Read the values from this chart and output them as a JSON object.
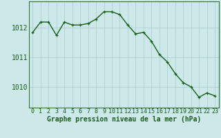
{
  "x": [
    0,
    1,
    2,
    3,
    4,
    5,
    6,
    7,
    8,
    9,
    10,
    11,
    12,
    13,
    14,
    15,
    16,
    17,
    18,
    19,
    20,
    21,
    22,
    23
  ],
  "y": [
    1011.85,
    1012.2,
    1012.2,
    1011.75,
    1012.2,
    1012.1,
    1012.1,
    1012.15,
    1012.3,
    1012.55,
    1012.55,
    1012.45,
    1012.1,
    1011.8,
    1011.85,
    1011.55,
    1011.1,
    1010.85,
    1010.45,
    1010.15,
    1010.0,
    1009.65,
    1009.8,
    1009.7
  ],
  "line_color": "#1a5c1a",
  "marker": "+",
  "marker_size": 3,
  "background_color": "#cce8e8",
  "grid_color": "#aacccc",
  "xlabel": "Graphe pression niveau de la mer (hPa)",
  "yticks": [
    1010,
    1011,
    1012
  ],
  "ylim": [
    1009.3,
    1012.9
  ],
  "xlim": [
    -0.5,
    23.5
  ],
  "xlabel_fontsize": 7,
  "tick_fontsize": 6,
  "line_width": 1.0,
  "marker_color": "#1a5c1a"
}
